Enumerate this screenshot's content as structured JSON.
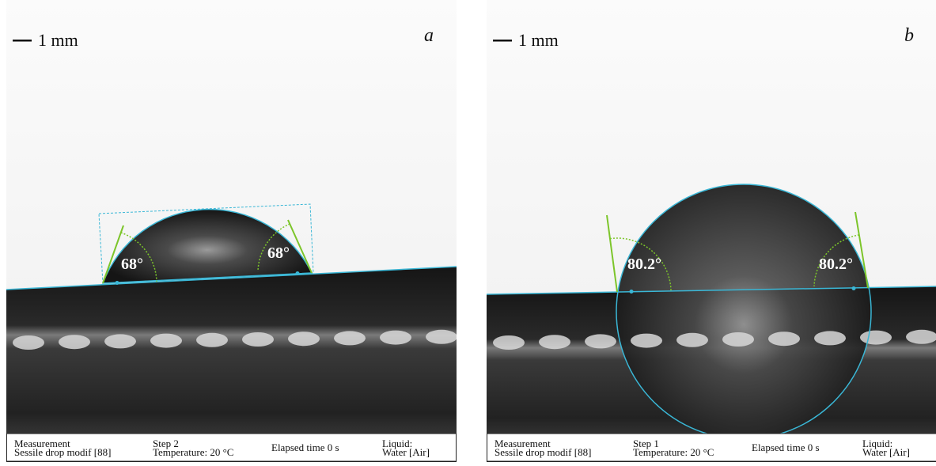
{
  "panels": [
    {
      "label": "a",
      "scale_bar": "1 mm",
      "angles": [
        "68°",
        "68°"
      ],
      "info": [
        [
          "Measurement",
          "Sessile drop modif [88]"
        ],
        [
          "Step 2",
          "Temperature: 20 °C"
        ],
        [
          "Elapsed time 0 s"
        ],
        [
          "Liquid:",
          "Water [Air]"
        ]
      ]
    },
    {
      "label": "b",
      "scale_bar": "1 mm",
      "angles": [
        "80.2°",
        "80.2°"
      ],
      "info": [
        [
          "Measurement",
          "Sessile drop modif [88]"
        ],
        [
          "Step 1",
          "Temperature: 20 °C"
        ],
        [
          "Elapsed time 0 s"
        ],
        [
          "Liquid:",
          "Water [Air]"
        ]
      ]
    }
  ]
}
